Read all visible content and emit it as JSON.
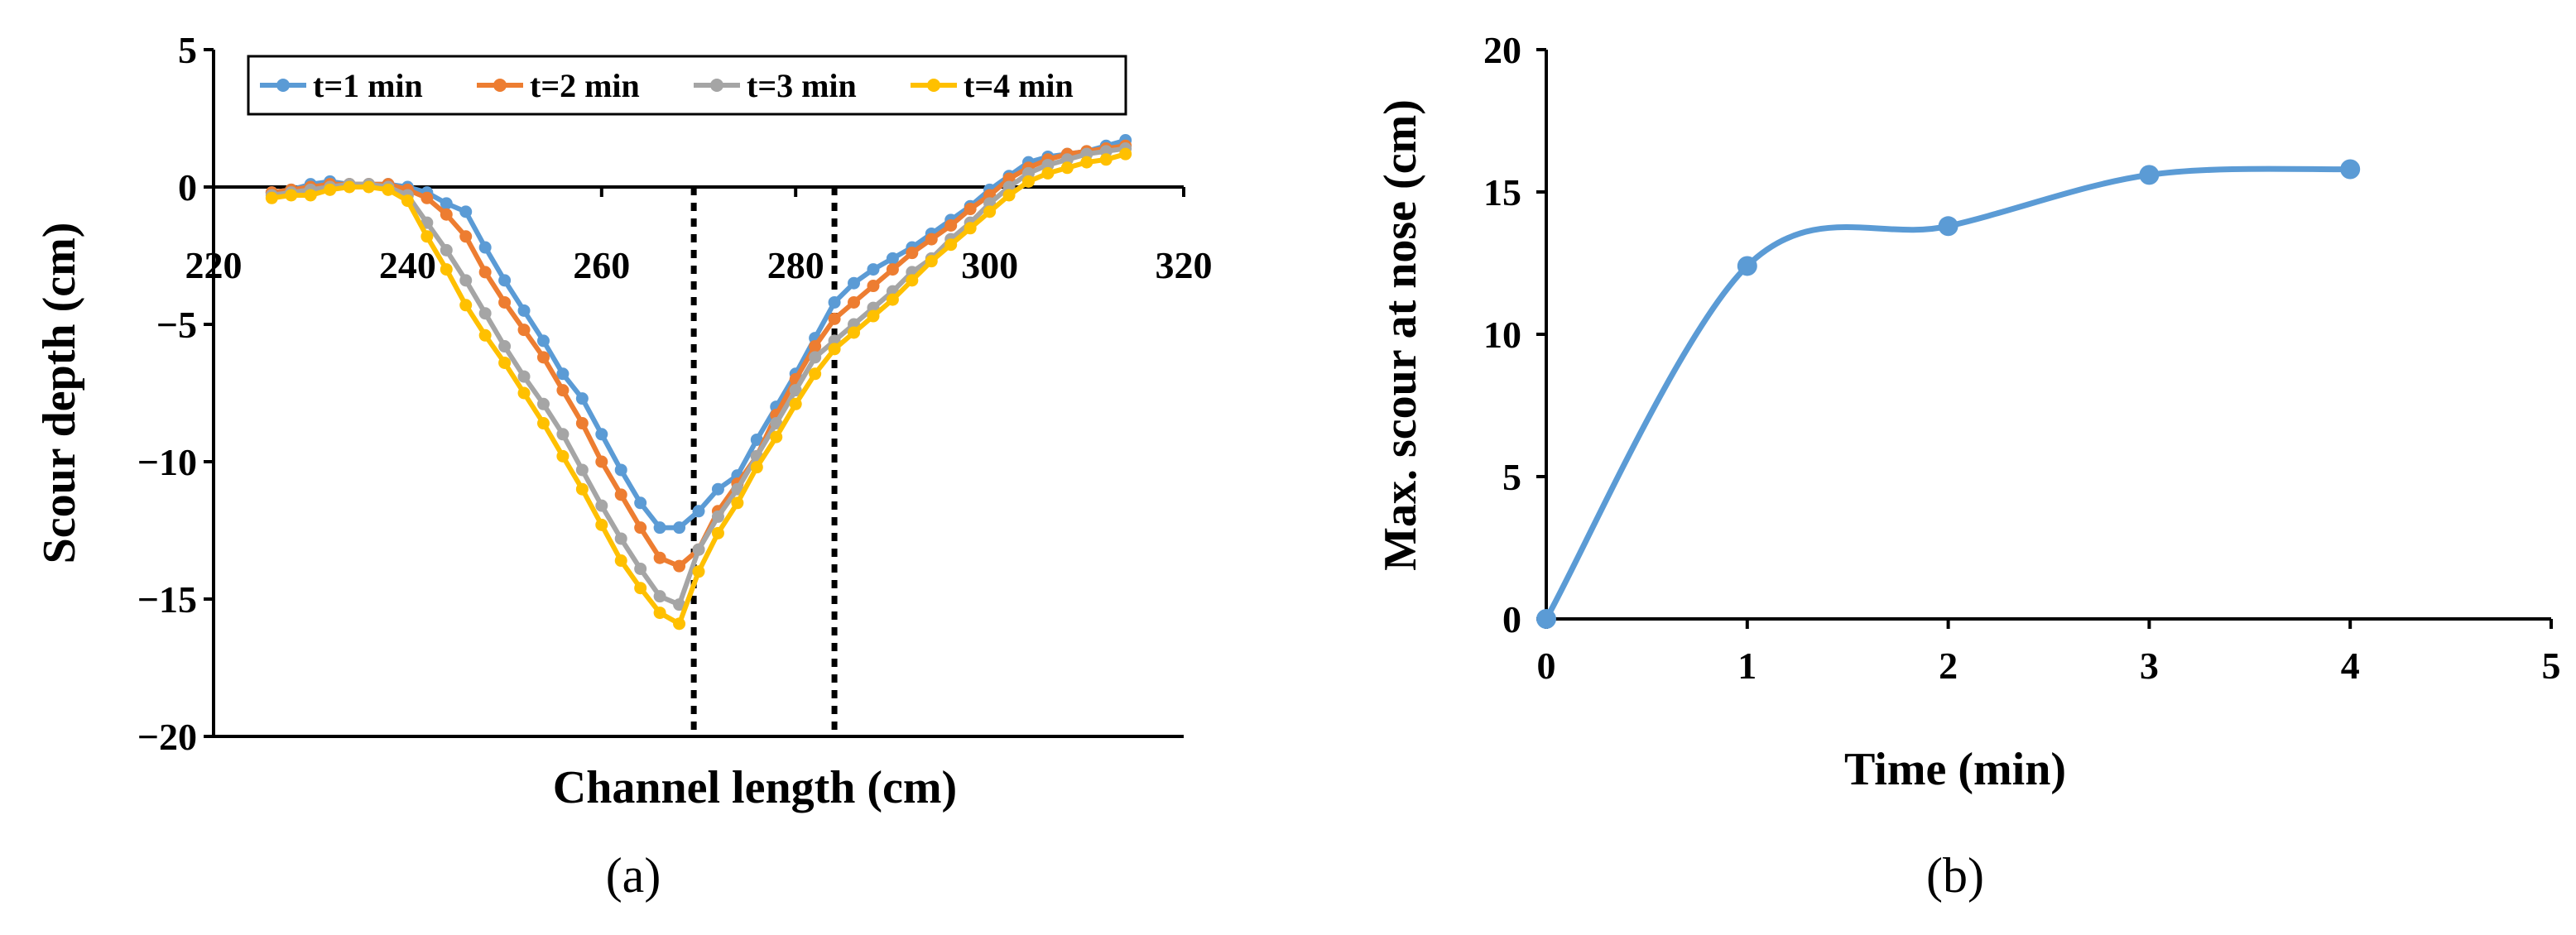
{
  "chart_data": [
    {
      "panel": "a",
      "type": "line",
      "panel_label": "(a)",
      "xlabel": "Channel length (cm)",
      "ylabel": "Scour depth (cm)",
      "xlim": [
        220,
        320
      ],
      "ylim": [
        -20,
        5
      ],
      "xticks": [
        220,
        240,
        260,
        280,
        300,
        320
      ],
      "yticks": [
        5,
        0,
        -5,
        -10,
        -15,
        -20
      ],
      "ytick_labels": [
        "5",
        "0",
        "−5",
        "−10",
        "−15",
        "−20"
      ],
      "legend_position": "top",
      "reference_lines_x": [
        269.5,
        284
      ],
      "x": [
        226,
        228,
        230,
        232,
        234,
        236,
        238,
        240,
        242,
        244,
        246,
        248,
        250,
        252,
        254,
        256,
        258,
        260,
        262,
        264,
        266,
        268,
        270,
        272,
        274,
        276,
        278,
        280,
        282,
        284,
        286,
        288,
        290,
        292,
        294,
        296,
        298,
        300,
        302,
        304,
        306,
        308,
        310,
        312,
        314
      ],
      "series": [
        {
          "name": "t=1 min",
          "color": "#5B9BD5",
          "values": [
            -0.2,
            -0.1,
            0.1,
            0.2,
            0.1,
            0.1,
            0.1,
            0.0,
            -0.2,
            -0.6,
            -0.9,
            -2.2,
            -3.4,
            -4.5,
            -5.6,
            -6.8,
            -7.7,
            -9.0,
            -10.3,
            -11.5,
            -12.4,
            -12.4,
            -11.8,
            -11.0,
            -10.5,
            -9.2,
            -8.0,
            -6.8,
            -5.5,
            -4.2,
            -3.5,
            -3.0,
            -2.6,
            -2.2,
            -1.7,
            -1.2,
            -0.7,
            -0.1,
            0.4,
            0.9,
            1.1,
            1.2,
            1.3,
            1.5,
            1.7
          ]
        },
        {
          "name": "t=2 min",
          "color": "#ED7D31",
          "values": [
            -0.2,
            -0.1,
            0.0,
            0.1,
            0.1,
            0.1,
            0.1,
            -0.1,
            -0.4,
            -1.0,
            -1.8,
            -3.1,
            -4.2,
            -5.2,
            -6.2,
            -7.4,
            -8.6,
            -10.0,
            -11.2,
            -12.4,
            -13.5,
            -13.8,
            -13.2,
            -11.8,
            -10.8,
            -9.8,
            -8.3,
            -7.0,
            -5.8,
            -4.8,
            -4.2,
            -3.6,
            -3.0,
            -2.4,
            -1.9,
            -1.4,
            -0.8,
            -0.3,
            0.3,
            0.7,
            1.0,
            1.2,
            1.3,
            1.4,
            1.5
          ]
        },
        {
          "name": "t=3 min",
          "color": "#A5A5A5",
          "values": [
            -0.3,
            -0.2,
            -0.1,
            0.0,
            0.1,
            0.1,
            0.0,
            -0.3,
            -1.3,
            -2.3,
            -3.4,
            -4.6,
            -5.8,
            -6.9,
            -7.9,
            -9.0,
            -10.3,
            -11.6,
            -12.8,
            -13.9,
            -14.9,
            -15.2,
            -13.2,
            -12.0,
            -11.0,
            -9.8,
            -8.6,
            -7.4,
            -6.2,
            -5.6,
            -5.0,
            -4.4,
            -3.8,
            -3.1,
            -2.6,
            -1.9,
            -1.3,
            -0.6,
            0.0,
            0.5,
            0.8,
            1.0,
            1.2,
            1.3,
            1.4
          ]
        },
        {
          "name": "t=4 min",
          "color": "#FFC000",
          "values": [
            -0.4,
            -0.3,
            -0.3,
            -0.1,
            0.0,
            0.0,
            -0.1,
            -0.5,
            -1.8,
            -3.0,
            -4.3,
            -5.4,
            -6.4,
            -7.5,
            -8.6,
            -9.8,
            -11.0,
            -12.3,
            -13.6,
            -14.6,
            -15.5,
            -15.9,
            -14.0,
            -12.6,
            -11.5,
            -10.2,
            -9.1,
            -7.9,
            -6.8,
            -5.9,
            -5.3,
            -4.7,
            -4.1,
            -3.4,
            -2.7,
            -2.1,
            -1.5,
            -0.9,
            -0.3,
            0.2,
            0.5,
            0.7,
            0.9,
            1.0,
            1.2
          ]
        }
      ]
    },
    {
      "panel": "b",
      "type": "line",
      "panel_label": "(b)",
      "xlabel": "Time (min)",
      "ylabel": "Max. scour at nose (cm)",
      "xlim": [
        0,
        5
      ],
      "ylim": [
        0,
        20
      ],
      "xticks": [
        0,
        1,
        2,
        3,
        4,
        5
      ],
      "yticks": [
        0,
        5,
        10,
        15,
        20
      ],
      "x": [
        0,
        1,
        2,
        3,
        4
      ],
      "series": [
        {
          "name": "Max. scour at nose",
          "color": "#5B9BD5",
          "values": [
            0,
            12.4,
            13.8,
            15.6,
            15.8
          ]
        }
      ]
    }
  ]
}
